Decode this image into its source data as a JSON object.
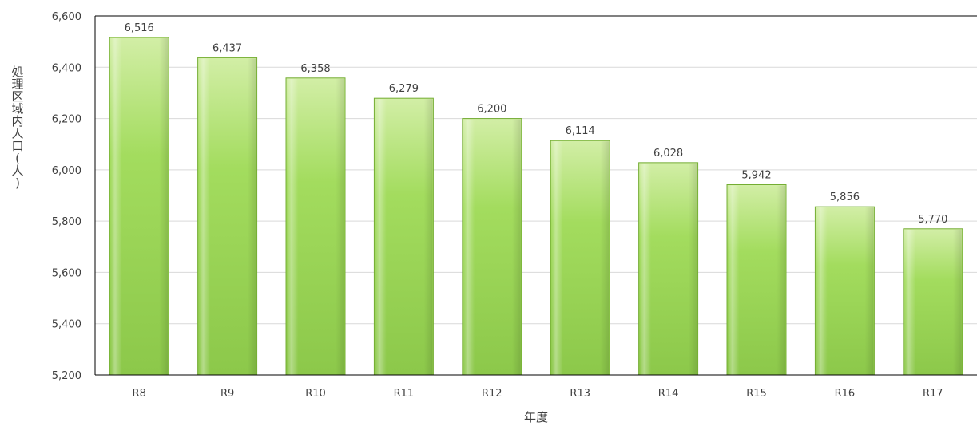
{
  "chart_data": {
    "type": "bar",
    "title": "",
    "xlabel": "年度",
    "ylabel": "処理区域内人口(人)",
    "categories": [
      "R8",
      "R9",
      "R10",
      "R11",
      "R12",
      "R13",
      "R14",
      "R15",
      "R16",
      "R17"
    ],
    "values": [
      6516,
      6437,
      6358,
      6279,
      6200,
      6114,
      6028,
      5942,
      5856,
      5770
    ],
    "value_labels": [
      "6,516",
      "6,437",
      "6,358",
      "6,279",
      "6,200",
      "6,114",
      "6,028",
      "5,942",
      "5,856",
      "5,770"
    ],
    "ylim": [
      5200,
      6600
    ],
    "yticks": [
      5200,
      5400,
      5600,
      5800,
      6000,
      6200,
      6400,
      6600
    ],
    "ytick_labels": [
      "5,200",
      "5,400",
      "5,600",
      "5,800",
      "6,000",
      "6,200",
      "6,400",
      "6,600"
    ],
    "grid": true,
    "legend": "none",
    "colors": {
      "bar_light": "#d2eea6",
      "bar_mid": "#a3dc5e",
      "bar_dark": "#8cc84a",
      "bar_edge": "#74ad33",
      "grid": "#d9d9d9",
      "axis": "#000000"
    }
  }
}
